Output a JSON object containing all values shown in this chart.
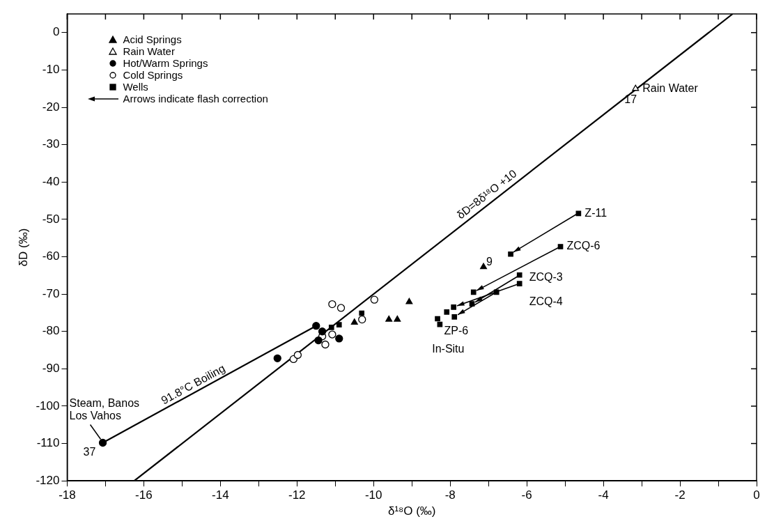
{
  "chart_data": {
    "type": "scatter",
    "xlabel": "δ¹⁸O (‰)",
    "ylabel": "δD (‰)",
    "legend": "top left",
    "grid": false,
    "xlim": [
      -18,
      0
    ],
    "ylim": [
      -120,
      5
    ],
    "xticks": [
      -18,
      {
        "value": -17,
        "label": null
      },
      -16,
      {
        "value": -15,
        "label": null
      },
      -14,
      {
        "value": -13,
        "label": null
      },
      -12,
      {
        "value": -11,
        "label": null
      },
      -10,
      {
        "value": -9,
        "label": null
      },
      -8,
      {
        "value": -7,
        "label": null
      },
      -6,
      {
        "value": -5,
        "label": null
      },
      -4,
      {
        "value": -3,
        "label": null
      },
      -2,
      {
        "value": -1,
        "label": null
      },
      0
    ],
    "yticks": [
      -120,
      -110,
      -100,
      -90,
      -80,
      -70,
      -60,
      -50,
      -40,
      -30,
      -20,
      -10,
      0
    ],
    "series": [
      {
        "name": "Acid Springs",
        "marker": "triangle",
        "color": "#000000",
        "x": [
          -10.5,
          -9.6,
          -9.38,
          -9.07,
          -7.13
        ],
        "values": [
          -77.6,
          -76.8,
          -76.8,
          -72.1,
          -62.7
        ]
      },
      {
        "name": "Rain Water",
        "marker": "triangle",
        "color": "#ffffff",
        "x": [
          -3.16
        ],
        "values": [
          -15
        ]
      },
      {
        "name": "Hot/Warm Springs",
        "marker": "circle",
        "color": "#000000",
        "x": [
          -17.07,
          -12.51,
          -11.5,
          -11.34,
          -11.44,
          -10.9
        ],
        "values": [
          -109.8,
          -87.2,
          -78.5,
          -80,
          -82.4,
          -81.9
        ]
      },
      {
        "name": "Cold Springs",
        "marker": "circle",
        "color": "#ffffff",
        "x": [
          -12.09,
          -11.98,
          -11.08,
          -10.85,
          -9.98,
          -10.3,
          -11.34,
          -11.08,
          -11.26
        ],
        "values": [
          -87.4,
          -86.3,
          -72.7,
          -73.7,
          -71.5,
          -76.8,
          -81.3,
          -80.8,
          -83.5
        ]
      },
      {
        "name": "Wells",
        "marker": "square",
        "color": "#000000",
        "x": [
          -4.65,
          -6.42,
          -5.12,
          -7.39,
          -6.19,
          -6.19,
          -6.79,
          -7.43,
          -7.91,
          -8.09,
          -7.89,
          -8.33,
          -8.27,
          -10.9,
          -11.1,
          -10.31
        ],
        "values": [
          -48.4,
          -59.3,
          -57.3,
          -69.5,
          -64.9,
          -67.2,
          -69.5,
          -72.6,
          -73.5,
          -74.8,
          -76.1,
          -76.6,
          -78.1,
          -78.2,
          -78.9,
          -75.1
        ]
      },
      {
        "type": "line",
        "marker": "none",
        "color": "#000000",
        "x": [
          -16.25,
          -0.625
        ],
        "values": [
          -120,
          5
        ]
      },
      {
        "type": "line",
        "marker": "none",
        "color": "#000000",
        "x": [
          -17.07,
          -11.5
        ],
        "values": [
          -109.8,
          -78.5
        ]
      }
    ],
    "annotations": [
      "Arrows indicate flash correction",
      {
        "text": "Rain Water",
        "x": -3.16,
        "y": -15
      },
      {
        "text": "17",
        "x": -3.16,
        "y": -15
      },
      {
        "text": "Z-11",
        "x": -4.65,
        "y": -48.4
      },
      {
        "text": "ZCQ-6",
        "x": -5.12,
        "y": -57.3
      },
      {
        "text": "ZCQ-3",
        "x": -6.19,
        "y": -64.9
      },
      {
        "text": "ZCQ-4",
        "x": -6.19,
        "y": -67.2
      },
      {
        "text": "9",
        "x": -7.13,
        "y": -62.7
      },
      {
        "text": "ZP-6",
        "x": -7.43,
        "y": -72.6
      },
      {
        "text": "In-Situ",
        "x": -8.27,
        "y": -78.1
      },
      {
        "text": "Steam, Banos Los Vahos",
        "x": -17.07,
        "y": -109.8
      },
      {
        "text": "37",
        "x": -17.07,
        "y": -109.8
      },
      {
        "text": "91.8°C Boiling",
        "x": -14.6,
        "y": -96.3
      },
      {
        "text": "δD=8δ¹⁸O +10",
        "x": -6.9,
        "y": -45.2
      }
    ]
  }
}
